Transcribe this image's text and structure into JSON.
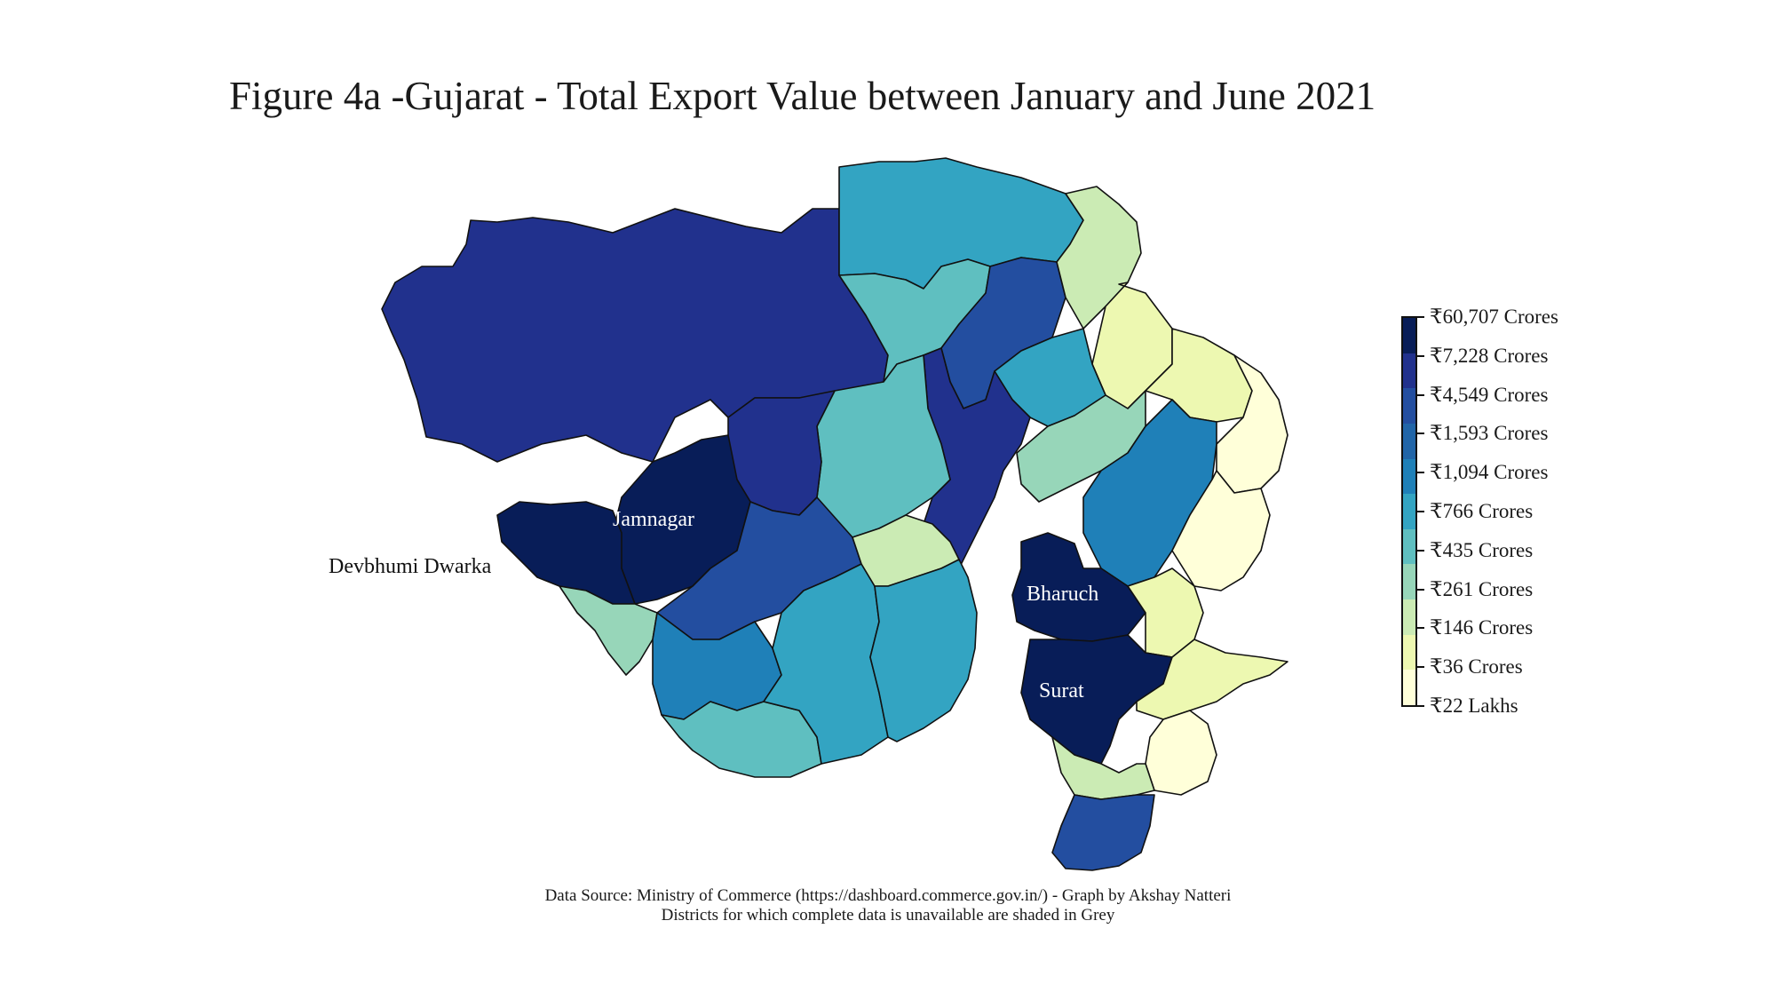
{
  "title": "Figure 4a -Gujarat - Total Export Value between January and June 2021",
  "legend": {
    "entries": [
      {
        "label": "₹60,707 Crores",
        "color": "#081d58"
      },
      {
        "label": "₹7,228 Crores",
        "color": "#21318d"
      },
      {
        "label": "₹4,549 Crores",
        "color": "#234ea0"
      },
      {
        "label": "₹1,593 Crores",
        "color": "#2165a8"
      },
      {
        "label": "₹1,094 Crores",
        "color": "#1f80b8"
      },
      {
        "label": "₹766 Crores",
        "color": "#33a4c2"
      },
      {
        "label": "₹435 Crores",
        "color": "#5fbfc0"
      },
      {
        "label": "₹261 Crores",
        "color": "#97d6b9"
      },
      {
        "label": "₹146 Crores",
        "color": "#cbebb4"
      },
      {
        "label": "₹36 Crores",
        "color": "#edf8b1"
      },
      {
        "label": "₹22 Lakhs",
        "color": "#ffffd9"
      }
    ]
  },
  "map_labels": {
    "jamnagar": "Jamnagar",
    "devbhumi_dwarka": "Devbhumi Dwarka",
    "bharuch": "Bharuch",
    "surat": "Surat"
  },
  "footer": {
    "line1": "Data Source:  Ministry of Commerce (https://dashboard.commerce.gov.in/) - Graph by Akshay Natteri",
    "line2": "Districts for which complete data is unavailable are shaded in Grey"
  }
}
